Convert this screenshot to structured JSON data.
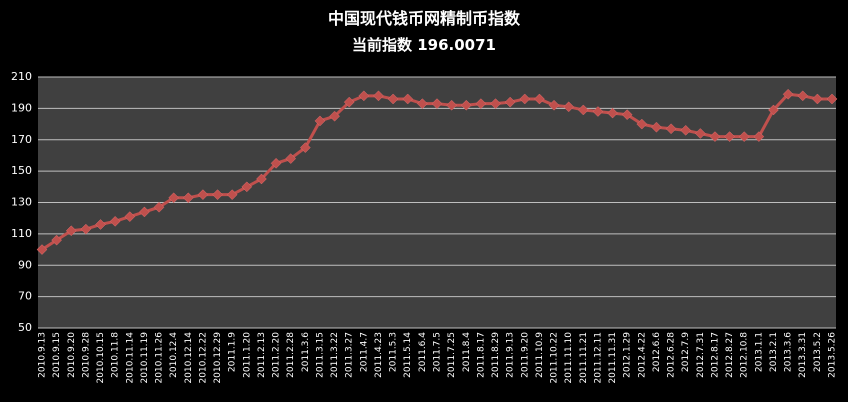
{
  "chart_data": {
    "type": "line",
    "title": "中国现代钱币网精制币指数",
    "subtitle": "当前指数 196.0071",
    "categories": [
      "2010.9.13",
      "2010.9.15",
      "2010.9.20",
      "2010.9.28",
      "2010.10.15",
      "2010.11.8",
      "2010.11.14",
      "2010.11.19",
      "2010.11.26",
      "2010.12.4",
      "2010.12.14",
      "2010.12.22",
      "2010.12.29",
      "2011.1.9",
      "2011.1.20",
      "2011.2.13",
      "2011.2.20",
      "2011.2.28",
      "2011.3.6",
      "2011.3.15",
      "2011.3.22",
      "2011.3.27",
      "2011.4.7",
      "2011.4.23",
      "2011.5.3",
      "2011.5.14",
      "2011.6.4",
      "2011.7.5",
      "2011.7.25",
      "2011.8.4",
      "2011.8.17",
      "2011.8.29",
      "2011.9.13",
      "2011.9.20",
      "2011.10.9",
      "2011.10.22",
      "2011.11.10",
      "2011.11.21",
      "2011.12.11",
      "2011.11.31",
      "2012.1.29",
      "2012.4.22",
      "2012.6.6",
      "2012.6.28",
      "2012.7.9",
      "2012.7.31",
      "2012.8.17",
      "2012.8.27",
      "2012.10.8",
      "2013.1.1",
      "2013.2.1",
      "2013.3.6",
      "2013.3.31",
      "2013.5.2",
      "2013.5.26"
    ],
    "values": [
      100,
      106,
      112,
      113,
      116,
      118,
      121,
      124,
      127,
      133,
      133,
      135,
      135,
      135,
      140,
      145,
      155,
      158,
      165,
      182,
      185,
      194,
      198,
      198,
      196,
      196,
      193,
      193,
      192,
      192,
      193,
      193,
      194,
      196,
      196,
      192,
      191,
      189,
      188,
      187,
      186,
      180,
      178,
      177,
      176,
      174,
      172,
      172,
      172,
      172,
      189,
      199,
      198,
      196,
      196
    ],
    "color": "#c0504d",
    "ylim": [
      50,
      210
    ],
    "yticks": [
      50,
      70,
      90,
      110,
      130,
      150,
      170,
      190,
      210
    ],
    "grid": true
  }
}
